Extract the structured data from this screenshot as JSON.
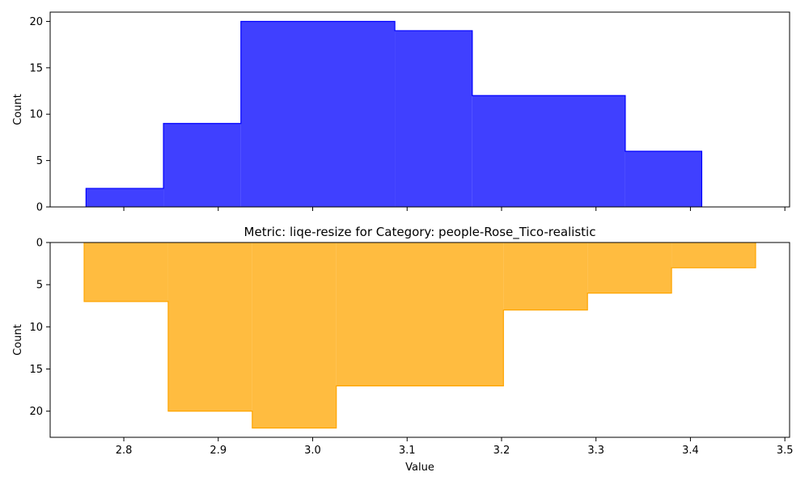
{
  "chart_data": [
    {
      "type": "histogram",
      "panel": "top",
      "title": "",
      "xlabel": "",
      "ylabel": "Count",
      "xlim": [
        2.722,
        3.505
      ],
      "ylim": [
        0,
        21
      ],
      "inverted_y": false,
      "color": "#0000ff",
      "alpha": 0.75,
      "bins": [
        {
          "x0": 2.76,
          "x1": 2.842,
          "count": 2
        },
        {
          "x0": 2.842,
          "x1": 2.924,
          "count": 9
        },
        {
          "x0": 2.924,
          "x1": 3.087,
          "count": 20
        },
        {
          "x0": 3.087,
          "x1": 3.169,
          "count": 19
        },
        {
          "x0": 3.169,
          "x1": 3.331,
          "count": 12
        },
        {
          "x0": 3.331,
          "x1": 3.412,
          "count": 6
        }
      ],
      "xticks": [
        2.8,
        2.9,
        3.0,
        3.1,
        3.2,
        3.3,
        3.4,
        3.5
      ],
      "yticks": [
        0,
        5,
        10,
        15,
        20
      ],
      "show_xtick_labels": false
    },
    {
      "type": "histogram",
      "panel": "bottom",
      "title": "Metric: liqe-resize for Category: people-Rose_Tico-realistic",
      "xlabel": "Value",
      "ylabel": "Count",
      "xlim": [
        2.722,
        3.505
      ],
      "ylim": [
        23.1,
        0
      ],
      "inverted_y": true,
      "color": "#ffa500",
      "alpha": 0.75,
      "bins": [
        {
          "x0": 2.758,
          "x1": 2.847,
          "count": 7
        },
        {
          "x0": 2.847,
          "x1": 2.936,
          "count": 20
        },
        {
          "x0": 2.936,
          "x1": 3.025,
          "count": 22
        },
        {
          "x0": 3.025,
          "x1": 3.202,
          "count": 17
        },
        {
          "x0": 3.202,
          "x1": 3.291,
          "count": 8
        },
        {
          "x0": 3.291,
          "x1": 3.38,
          "count": 6
        },
        {
          "x0": 3.38,
          "x1": 3.469,
          "count": 3
        }
      ],
      "xticks": [
        2.8,
        2.9,
        3.0,
        3.1,
        3.2,
        3.3,
        3.4,
        3.5
      ],
      "yticks": [
        0,
        5,
        10,
        15,
        20
      ],
      "show_xtick_labels": true
    }
  ]
}
